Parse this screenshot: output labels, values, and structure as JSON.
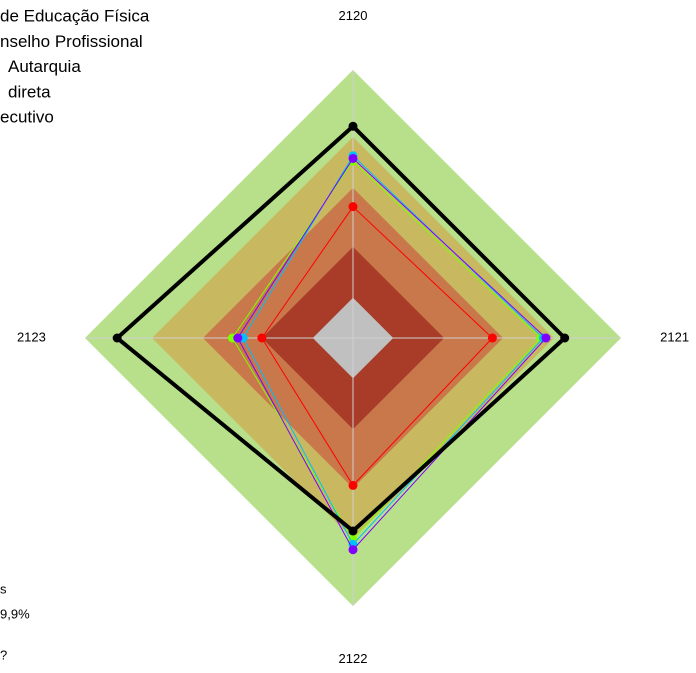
{
  "chart_data": {
    "type": "radar",
    "categories": [
      "2120",
      "2121",
      "2122",
      "2123"
    ],
    "rlim": [
      0,
      100
    ],
    "bands": [
      {
        "value": 100,
        "color": "#b8e08a"
      },
      {
        "value": 75,
        "color": "#c8b860"
      },
      {
        "value": 56,
        "color": "#c8784a"
      },
      {
        "value": 34,
        "color": "#a83c28"
      },
      {
        "value": 15,
        "color": "#c0c0c0"
      }
    ],
    "legend_texts": [
      "de Educação Física",
      "nselho Profissional",
      "Autarquia",
      "direta",
      "ecutivo"
    ],
    "notes": [
      "s",
      "9,9%",
      "?"
    ],
    "series": [
      {
        "color": "#ff0000",
        "values": [
          49,
          52,
          55,
          34
        ]
      },
      {
        "color": "#80ff00",
        "values": [
          66,
          70,
          75,
          45
        ]
      },
      {
        "color": "#00bfff",
        "values": [
          68,
          71,
          77,
          41
        ]
      },
      {
        "color": "#8000ff",
        "values": [
          67,
          72,
          79,
          43
        ]
      },
      {
        "color": "#000000",
        "values": [
          79,
          79,
          72,
          88
        ]
      }
    ]
  }
}
